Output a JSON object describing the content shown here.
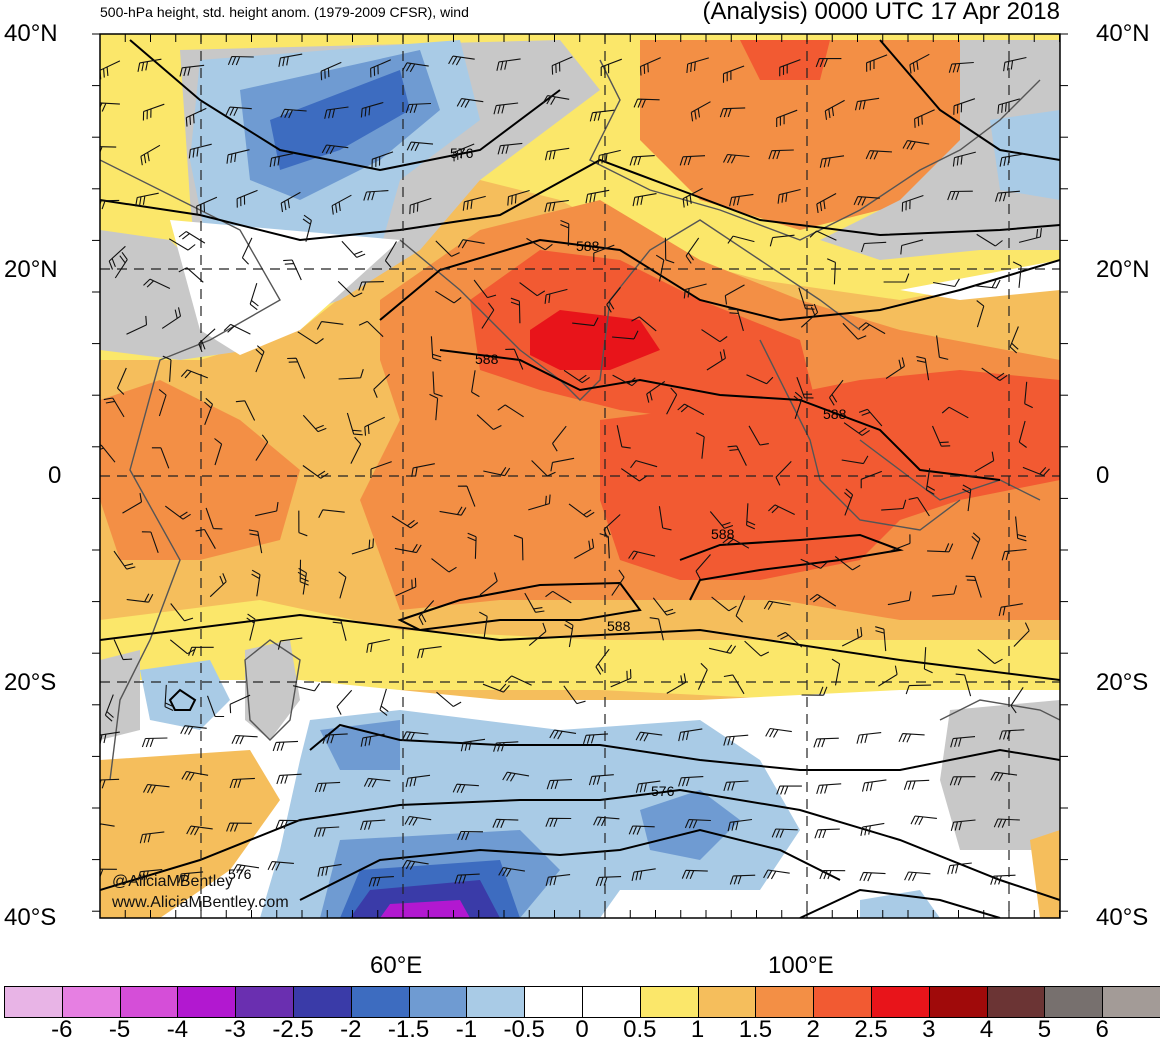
{
  "title": {
    "left": "500-hPa height, std. height anom. (1979-2009 CFSR), wind",
    "right": "(Analysis) 0000 UTC 17 Apr 2018"
  },
  "lat_labels": [
    "40°N",
    "20°N",
    "0",
    "20°S",
    "40°S"
  ],
  "lon_labels": [
    "60°E",
    "100°E"
  ],
  "contour_labels": [
    "576",
    "588",
    "588",
    "588",
    "588",
    "588",
    "576",
    "576"
  ],
  "credit": {
    "handle": "@AliciaMBentley",
    "site": "www.AliciaMBentley.com"
  },
  "colorbar": {
    "labels": [
      "-6",
      "-5",
      "-4",
      "-3",
      "-2.5",
      "-2",
      "-1.5",
      "-1",
      "-0.5",
      "0",
      "0.5",
      "1",
      "1.5",
      "2",
      "2.5",
      "3",
      "4",
      "5",
      "6"
    ],
    "colors": [
      "#e8b4e6",
      "#e67fe2",
      "#d54ed8",
      "#b218d0",
      "#6a2fb0",
      "#3a3ba8",
      "#3d6cc0",
      "#6f9bd2",
      "#a9cbe6",
      "#ffffff",
      "#ffffff",
      "#fbe76a",
      "#f5be5c",
      "#f38f45",
      "#f25a32",
      "#e8141a",
      "#a00a0a",
      "#6b3434",
      "#77706e",
      "#a39b97"
    ]
  },
  "colors": {
    "land_neutral": "#c8c8c8",
    "pos_1": "#fbe76a",
    "pos_15": "#f5be5c",
    "pos_2": "#f38f45",
    "pos_25": "#f25a32",
    "pos_3": "#e8141a",
    "neg_05": "#a9cbe6",
    "neg_1": "#6f9bd2",
    "neg_15": "#3d6cc0",
    "neg_2": "#3a3ba8",
    "neg_3": "#b218d0"
  }
}
